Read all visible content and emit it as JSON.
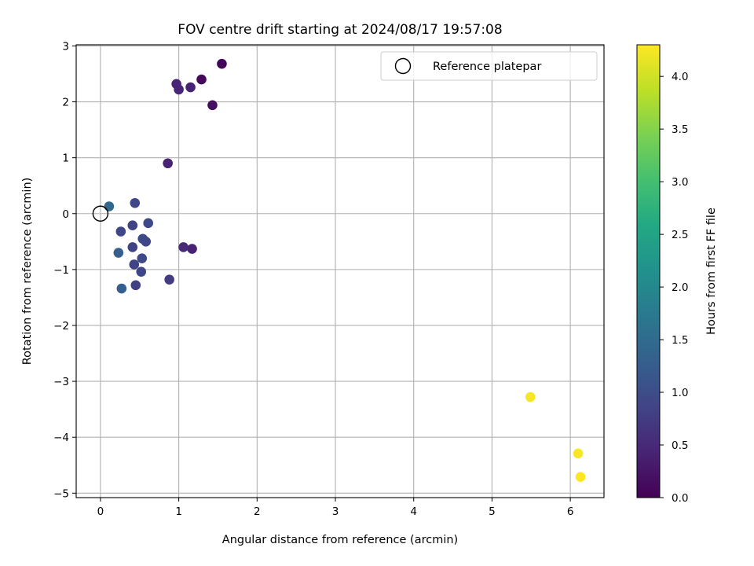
{
  "chart_data": {
    "type": "scatter",
    "title": "FOV centre drift starting at 2024/08/17 19:57:08",
    "xlabel": "Angular distance from reference (arcmin)",
    "ylabel": "Rotation from reference (arcmin)",
    "xlim": [
      -0.31,
      6.43
    ],
    "ylim": [
      -5.08,
      3.02
    ],
    "xticks": [
      0,
      1,
      2,
      3,
      4,
      5,
      6
    ],
    "yticks": [
      -5,
      -4,
      -3,
      -2,
      -1,
      0,
      1,
      2,
      3
    ],
    "xtick_labels": [
      "0",
      "1",
      "2",
      "3",
      "4",
      "5",
      "6"
    ],
    "ytick_labels": [
      "−5",
      "−4",
      "−3",
      "−2",
      "−1",
      "0",
      "1",
      "2",
      "3"
    ],
    "grid": true,
    "legend": {
      "position": "top-right",
      "entries": [
        "Reference platepar"
      ]
    },
    "reference_point": {
      "x": 0,
      "y": 0,
      "name": "Reference platepar",
      "marker": "open-circle"
    },
    "colormap": "viridis",
    "colorbar": {
      "label": "Hours from first FF file",
      "range": [
        0.0,
        4.3
      ],
      "ticks": [
        0.0,
        0.5,
        1.0,
        1.5,
        2.0,
        2.5,
        3.0,
        3.5,
        4.0
      ],
      "tick_labels": [
        "0.0",
        "0.5",
        "1.0",
        "1.5",
        "2.0",
        "2.5",
        "3.0",
        "3.5",
        "4.0"
      ]
    },
    "points": [
      {
        "x": 1.55,
        "y": 2.68,
        "c": 0.05
      },
      {
        "x": 1.29,
        "y": 2.4,
        "c": 0.1
      },
      {
        "x": 0.97,
        "y": 2.32,
        "c": 0.45
      },
      {
        "x": 1.0,
        "y": 2.22,
        "c": 0.45
      },
      {
        "x": 1.15,
        "y": 2.26,
        "c": 0.4
      },
      {
        "x": 1.43,
        "y": 1.94,
        "c": 0.15
      },
      {
        "x": 0.86,
        "y": 0.9,
        "c": 0.4
      },
      {
        "x": 0.11,
        "y": 0.13,
        "c": 1.45
      },
      {
        "x": 0.44,
        "y": 0.19,
        "c": 0.9
      },
      {
        "x": 0.41,
        "y": -0.21,
        "c": 0.85
      },
      {
        "x": 0.61,
        "y": -0.17,
        "c": 0.95
      },
      {
        "x": 0.26,
        "y": -0.32,
        "c": 0.9
      },
      {
        "x": 0.54,
        "y": -0.45,
        "c": 0.95
      },
      {
        "x": 0.58,
        "y": -0.5,
        "c": 0.9
      },
      {
        "x": 0.41,
        "y": -0.6,
        "c": 0.85
      },
      {
        "x": 1.06,
        "y": -0.6,
        "c": 0.5
      },
      {
        "x": 1.17,
        "y": -0.63,
        "c": 0.4
      },
      {
        "x": 0.23,
        "y": -0.7,
        "c": 1.3
      },
      {
        "x": 0.53,
        "y": -0.8,
        "c": 0.95
      },
      {
        "x": 0.43,
        "y": -0.91,
        "c": 0.85
      },
      {
        "x": 0.52,
        "y": -1.04,
        "c": 0.9
      },
      {
        "x": 0.88,
        "y": -1.18,
        "c": 0.75
      },
      {
        "x": 0.45,
        "y": -1.28,
        "c": 0.8
      },
      {
        "x": 0.27,
        "y": -1.34,
        "c": 1.3
      },
      {
        "x": 5.49,
        "y": -3.28,
        "c": 4.25
      },
      {
        "x": 6.1,
        "y": -4.29,
        "c": 4.27
      },
      {
        "x": 6.13,
        "y": -4.71,
        "c": 4.3
      }
    ]
  }
}
